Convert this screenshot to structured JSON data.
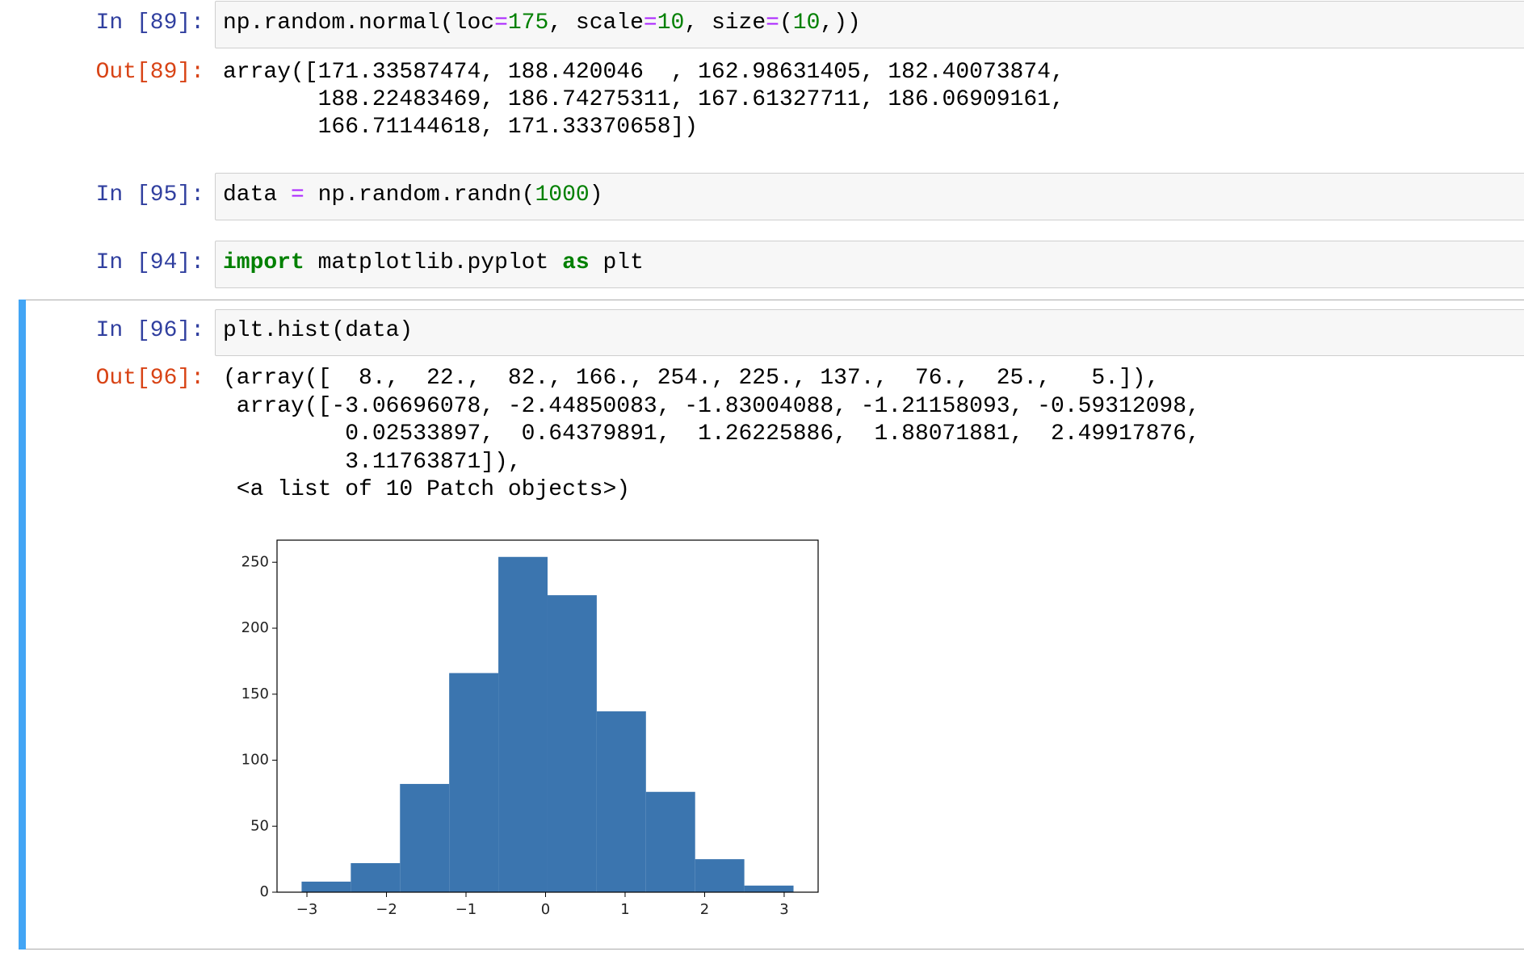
{
  "cells": [
    {
      "prompt": "In [89]:",
      "code": [
        "np.random.normal(loc",
        "=",
        "175",
        ", scale",
        "=",
        "10",
        ", size",
        "=",
        "(",
        "10",
        ",))"
      ],
      "out_prompt": "Out[89]:",
      "output": [
        "array([171.33587474, 188.420046  , 162.98631405, 182.40073874,",
        "       188.22483469, 186.74275311, 167.61327711, 186.06909161,",
        "       166.71144618, 171.33370658])"
      ]
    },
    {
      "prompt": "In [95]:",
      "code": [
        "data ",
        "=",
        " np.random.randn(",
        "1000",
        ")"
      ]
    },
    {
      "prompt": "In [94]:",
      "code": [
        "import",
        " matplotlib.pyplot ",
        "as",
        " plt"
      ]
    },
    {
      "prompt": "In [96]:",
      "code": [
        "plt.hist(data)"
      ],
      "out_prompt": "Out[96]:",
      "output": [
        "(array([  8.,  22.,  82., 166., 254., 225., 137.,  76.,  25.,   5.]),",
        " array([-3.06696078, -2.44850083, -1.83004088, -1.21158093, -0.59312098,",
        "         0.02533897,  0.64379891,  1.26225886,  1.88071881,  2.49917876,",
        "         3.11763871]),",
        " <a list of 10 Patch objects>)"
      ]
    }
  ],
  "chart_data": {
    "type": "histogram",
    "bins": [
      -3.06696078,
      -2.44850083,
      -1.83004088,
      -1.21158093,
      -0.59312098,
      0.02533897,
      0.64379891,
      1.26225886,
      1.88071881,
      2.49917876,
      3.11763871
    ],
    "counts": [
      8,
      22,
      82,
      166,
      254,
      225,
      137,
      76,
      25,
      5
    ],
    "color": "#3b75af",
    "xlim": [
      -3.376,
      3.427
    ],
    "ylim": [
      0,
      266.7
    ],
    "xticks": [
      {
        "value": -3,
        "label": "−3"
      },
      {
        "value": -2,
        "label": "−2"
      },
      {
        "value": -1,
        "label": "−1"
      },
      0,
      1,
      2,
      3
    ],
    "yticks": [
      0,
      50,
      100,
      150,
      200,
      250
    ]
  }
}
